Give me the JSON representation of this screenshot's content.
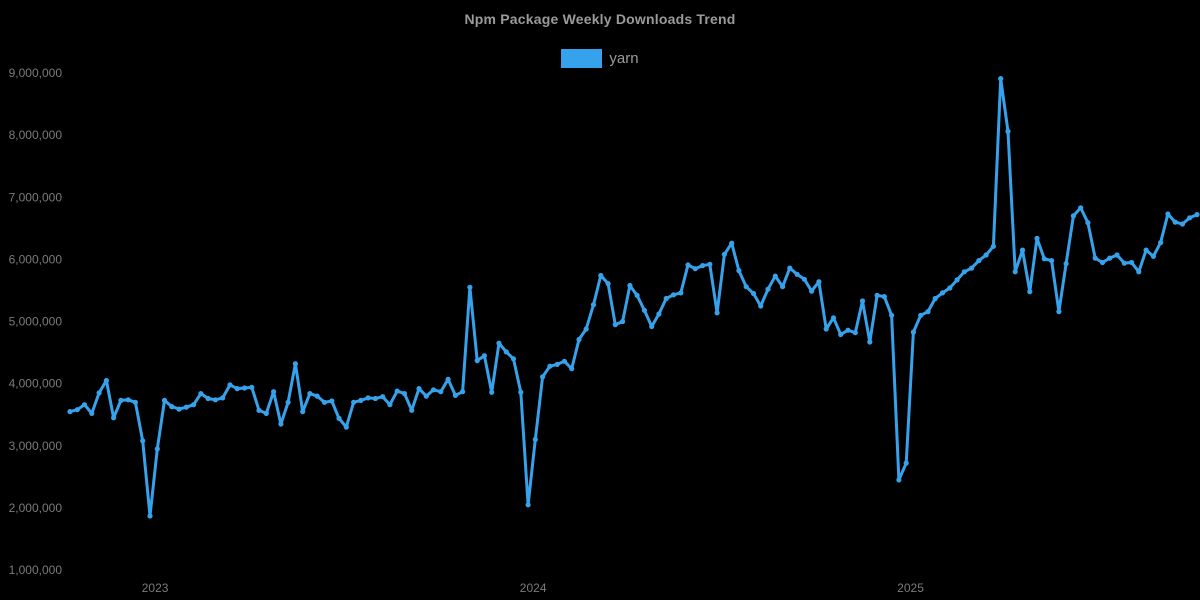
{
  "title": "Npm Package Weekly Downloads Trend",
  "legend": {
    "items": [
      {
        "label": "yarn",
        "color": "#36a2eb"
      }
    ]
  },
  "colors": {
    "background": "#000000",
    "line": "#36a2eb",
    "axis_text": "#7a7a7a",
    "title_text": "#9a9a9a"
  },
  "chart_data": {
    "type": "line",
    "title": "Npm Package Weekly Downloads Trend",
    "xlabel": "",
    "ylabel": "",
    "x_unit": "week",
    "grid": false,
    "legend_position": "top",
    "point_markers": true,
    "ylim": [
      1000000,
      9000000
    ],
    "y_tick_step": 1000000,
    "y_tick_labels": [
      "1,000,000",
      "2,000,000",
      "3,000,000",
      "4,000,000",
      "5,000,000",
      "6,000,000",
      "7,000,000",
      "8,000,000",
      "9,000,000"
    ],
    "x_tick_labels": [
      "2023",
      "2024",
      "2025"
    ],
    "x_tick_positions_weeks": [
      11.7,
      63.7,
      115.6
    ],
    "series": [
      {
        "name": "yarn",
        "color": "#36a2eb",
        "values": [
          3550000,
          3580000,
          3660000,
          3520000,
          3850000,
          4050000,
          3450000,
          3730000,
          3740000,
          3700000,
          3080000,
          1870000,
          2950000,
          3730000,
          3630000,
          3590000,
          3620000,
          3660000,
          3840000,
          3760000,
          3740000,
          3770000,
          3980000,
          3920000,
          3930000,
          3940000,
          3570000,
          3520000,
          3870000,
          3350000,
          3700000,
          4320000,
          3550000,
          3840000,
          3800000,
          3700000,
          3720000,
          3440000,
          3300000,
          3700000,
          3730000,
          3770000,
          3760000,
          3790000,
          3660000,
          3880000,
          3840000,
          3570000,
          3920000,
          3800000,
          3900000,
          3870000,
          4070000,
          3810000,
          3870000,
          5550000,
          4370000,
          4450000,
          3860000,
          4650000,
          4510000,
          4400000,
          3860000,
          2050000,
          3100000,
          4110000,
          4280000,
          4310000,
          4360000,
          4240000,
          4710000,
          4880000,
          5270000,
          5740000,
          5610000,
          4950000,
          5000000,
          5580000,
          5420000,
          5180000,
          4920000,
          5120000,
          5370000,
          5430000,
          5460000,
          5910000,
          5850000,
          5900000,
          5920000,
          5140000,
          6080000,
          6260000,
          5820000,
          5560000,
          5450000,
          5250000,
          5520000,
          5730000,
          5560000,
          5860000,
          5760000,
          5680000,
          5490000,
          5640000,
          4880000,
          5060000,
          4790000,
          4860000,
          4820000,
          5330000,
          4670000,
          5420000,
          5400000,
          5100000,
          2450000,
          2720000,
          4830000,
          5100000,
          5160000,
          5370000,
          5460000,
          5540000,
          5670000,
          5800000,
          5860000,
          5980000,
          6070000,
          6210000,
          8910000,
          8060000,
          5800000,
          6150000,
          5480000,
          6340000,
          6010000,
          5980000,
          5160000,
          5930000,
          6700000,
          6830000,
          6590000,
          6020000,
          5950000,
          6020000,
          6070000,
          5940000,
          5950000,
          5800000,
          6150000,
          6050000,
          6270000,
          6730000,
          6600000,
          6570000,
          6670000,
          6720000
        ]
      }
    ]
  }
}
